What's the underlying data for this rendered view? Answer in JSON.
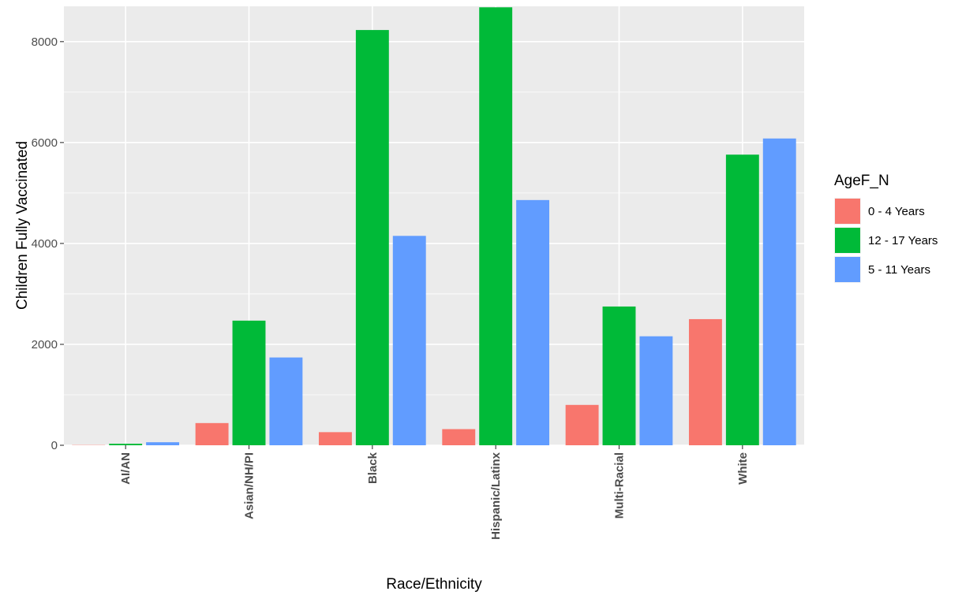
{
  "chart_data": {
    "type": "bar",
    "title": "",
    "xlabel": "Race/Ethnicity",
    "ylabel": "Children Fully Vaccinated",
    "ylim": [
      0,
      8700
    ],
    "yticks": [
      0,
      2000,
      4000,
      6000,
      8000
    ],
    "ytick_labels": [
      "0",
      "2000",
      "4000",
      "6000",
      "8000"
    ],
    "grid": true,
    "legend_position": "right",
    "legend_title": "AgeF_N",
    "categories": [
      "AI/AN",
      "Asian/NH/PI",
      "Black",
      "Hispanic/Latinx",
      "Multi-Racial",
      "White"
    ],
    "series": [
      {
        "name": "0 - 4 Years",
        "color": "#F8766D",
        "values": [
          5,
          440,
          260,
          320,
          800,
          2500
        ]
      },
      {
        "name": "12 - 17 Years",
        "color": "#00BA38",
        "values": [
          30,
          2470,
          8230,
          8680,
          2750,
          5760
        ]
      },
      {
        "name": "5 - 11 Years",
        "color": "#619CFF",
        "values": [
          60,
          1740,
          4150,
          4860,
          2160,
          6080
        ]
      }
    ]
  }
}
